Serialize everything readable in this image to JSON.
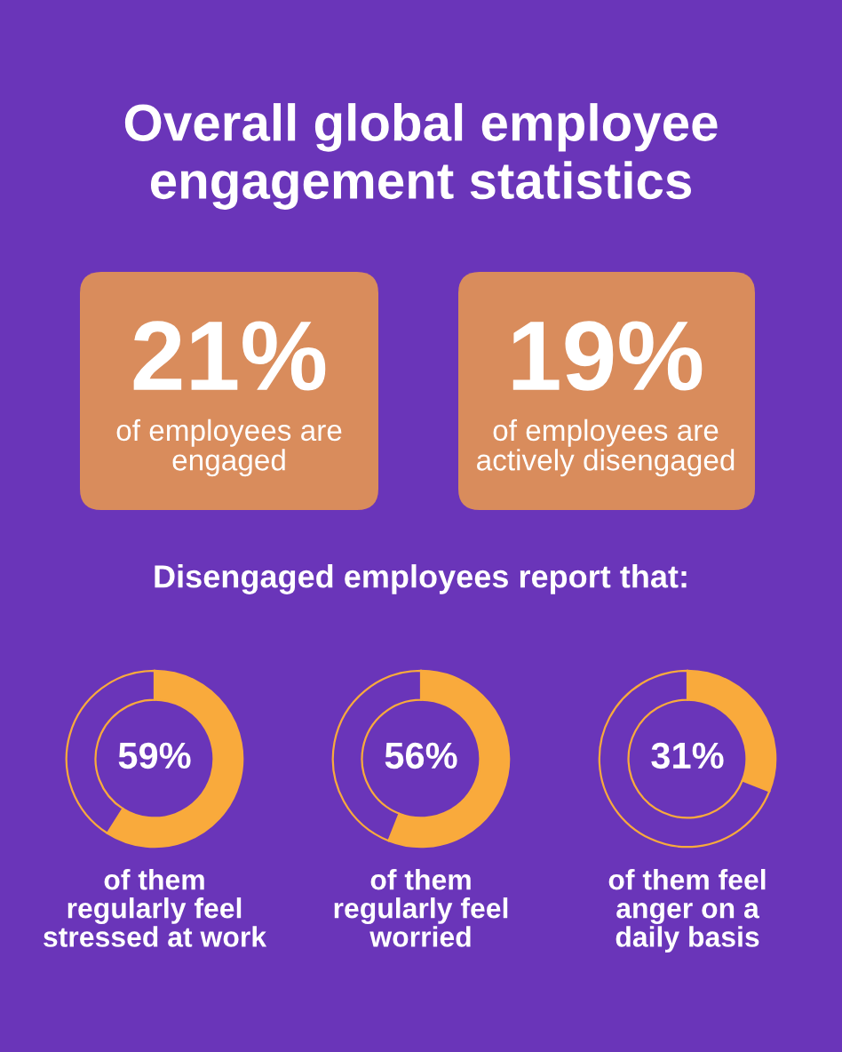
{
  "chart_data": [
    {
      "type": "other",
      "title": "Overall global employee\nengagement statistics",
      "annotations": [
        "21%",
        "of employees are\nengaged",
        "19%",
        "of employees are\nactively disengaged",
        "Disengaged employees report that:"
      ]
    },
    {
      "type": "donut",
      "categories": [
        null,
        null
      ],
      "values": [
        59,
        41
      ],
      "colors": [
        "#f9aa3c",
        "#6a35b9"
      ],
      "value_labels": [
        "59%",
        null
      ],
      "xlabel": "of them\nregularly feel\nstressed at work"
    },
    {
      "type": "donut",
      "categories": [
        null,
        null
      ],
      "values": [
        56,
        44
      ],
      "colors": [
        "#f9aa3c",
        "#6a35b9"
      ],
      "value_labels": [
        "56%",
        null
      ],
      "xlabel": "of them\nregularly feel\nworried"
    },
    {
      "type": "donut",
      "categories": [
        null,
        null
      ],
      "values": [
        31,
        69
      ],
      "colors": [
        "#f9aa3c",
        "#6a35b9"
      ],
      "value_labels": [
        "31%",
        null
      ],
      "xlabel": "of them feel\nanger on a\ndaily basis"
    }
  ]
}
